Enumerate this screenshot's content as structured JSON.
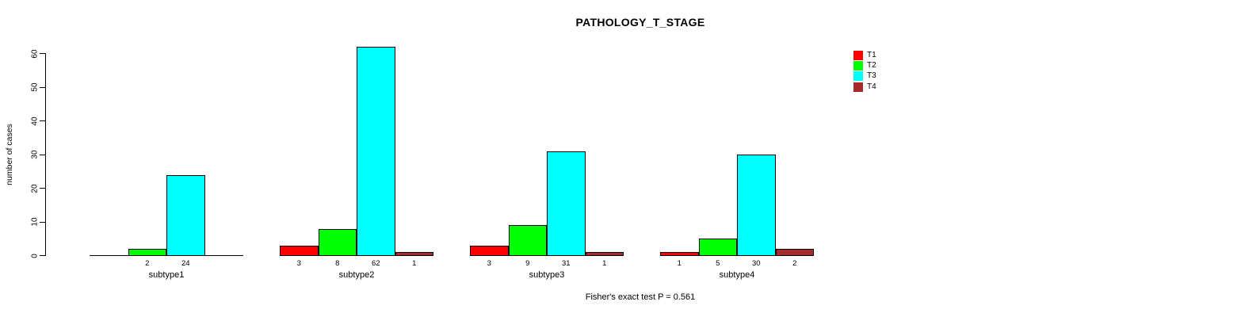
{
  "chart_data": {
    "type": "bar",
    "title": "PATHOLOGY_T_STAGE",
    "ylabel": "number of cases",
    "xlabel": "",
    "footnote": "Fisher's exact test P = 0.561",
    "ylim": [
      0,
      62
    ],
    "yticks": [
      0,
      10,
      20,
      30,
      40,
      50,
      60
    ],
    "grid": false,
    "legend_position": "right",
    "background": "#FFFFFF",
    "text_color": "#000000",
    "categories": [
      "subtype1",
      "subtype2",
      "subtype3",
      "subtype4"
    ],
    "series": [
      {
        "name": "T1",
        "color": "#FF0000",
        "values": [
          0,
          3,
          3,
          1
        ]
      },
      {
        "name": "T2",
        "color": "#00FF00",
        "values": [
          2,
          8,
          9,
          5
        ]
      },
      {
        "name": "T3",
        "color": "#00FFFF",
        "values": [
          24,
          62,
          31,
          30
        ]
      },
      {
        "name": "T4",
        "color": "#A52A2A",
        "values": [
          0,
          1,
          1,
          2
        ]
      }
    ],
    "bar_labels": [
      [
        "",
        "2",
        "24",
        ""
      ],
      [
        "3",
        "8",
        "62",
        "1"
      ],
      [
        "3",
        "9",
        "31",
        "1"
      ],
      [
        "1",
        "5",
        "30",
        "2"
      ]
    ]
  }
}
